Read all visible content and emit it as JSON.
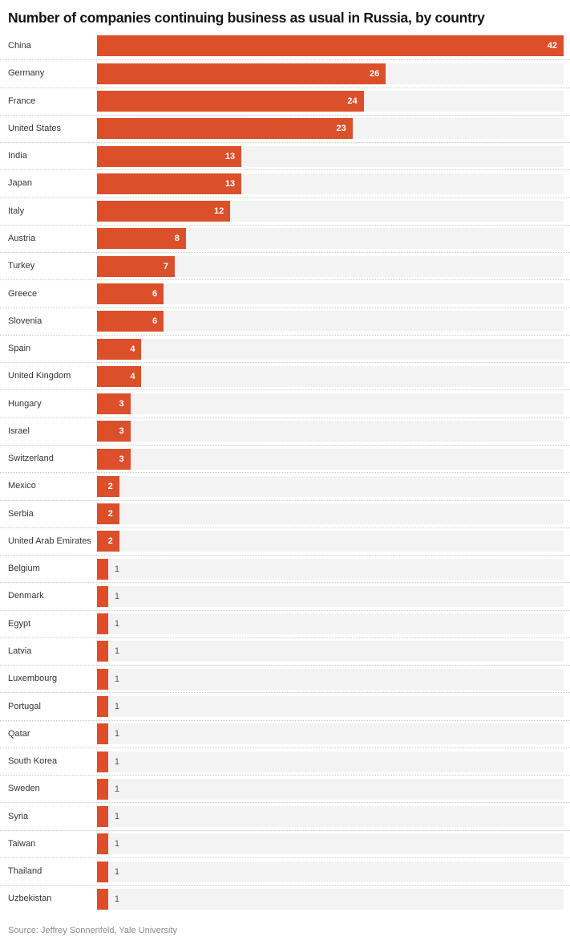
{
  "header": {
    "title": "Number of companies continuing business as usual in Russia, by country"
  },
  "footer": {
    "source": "Source: Jeffrey Sonnenfeld, Yale University"
  },
  "chart_data": {
    "type": "bar",
    "orientation": "horizontal",
    "title": "Number of companies continuing business as usual in Russia, by country",
    "xlabel": "",
    "ylabel": "",
    "xlim": [
      0,
      42
    ],
    "grid": false,
    "legend": "none",
    "bar_color": "#db4f2b",
    "track_color": "#f3f3f3",
    "value_label_inside_color": "#ffffff",
    "value_label_outside_color": "#555555",
    "categories": [
      "China",
      "Germany",
      "France",
      "United States",
      "India",
      "Japan",
      "Italy",
      "Austria",
      "Turkey",
      "Greece",
      "Slovenia",
      "Spain",
      "United Kingdom",
      "Hungary",
      "Israel",
      "Switzerland",
      "Mexico",
      "Serbia",
      "United Arab Emirates",
      "Belgium",
      "Denmark",
      "Egypt",
      "Latvia",
      "Luxembourg",
      "Portugal",
      "Qatar",
      "South Korea",
      "Sweden",
      "Syria",
      "Taiwan",
      "Thailand",
      "Uzbekistan"
    ],
    "values": [
      42,
      26,
      24,
      23,
      13,
      13,
      12,
      8,
      7,
      6,
      6,
      4,
      4,
      3,
      3,
      3,
      2,
      2,
      2,
      1,
      1,
      1,
      1,
      1,
      1,
      1,
      1,
      1,
      1,
      1,
      1,
      1
    ],
    "source": "Source: Jeffrey Sonnenfeld, Yale University"
  }
}
